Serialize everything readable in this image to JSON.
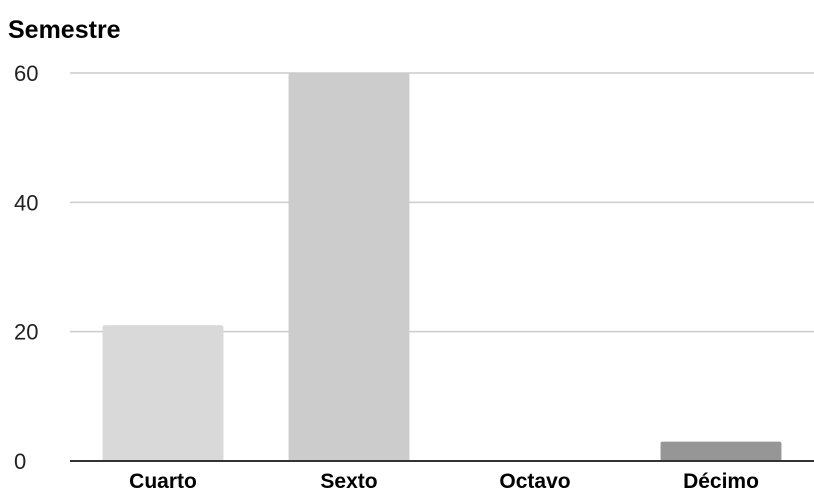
{
  "chart_data": {
    "type": "bar",
    "title": "Semestre",
    "xlabel": "",
    "ylabel": "",
    "categories": [
      "Cuarto",
      "Sexto",
      "Octavo",
      "Décimo"
    ],
    "values": [
      21,
      60,
      0,
      3
    ],
    "bar_colors": [
      "#d9d9d9",
      "#cccccc",
      "#bdbdbd",
      "#969696"
    ],
    "ylim": [
      0,
      60
    ],
    "yticks": [
      0,
      20,
      40,
      60
    ],
    "grid": true,
    "legend": "none"
  }
}
